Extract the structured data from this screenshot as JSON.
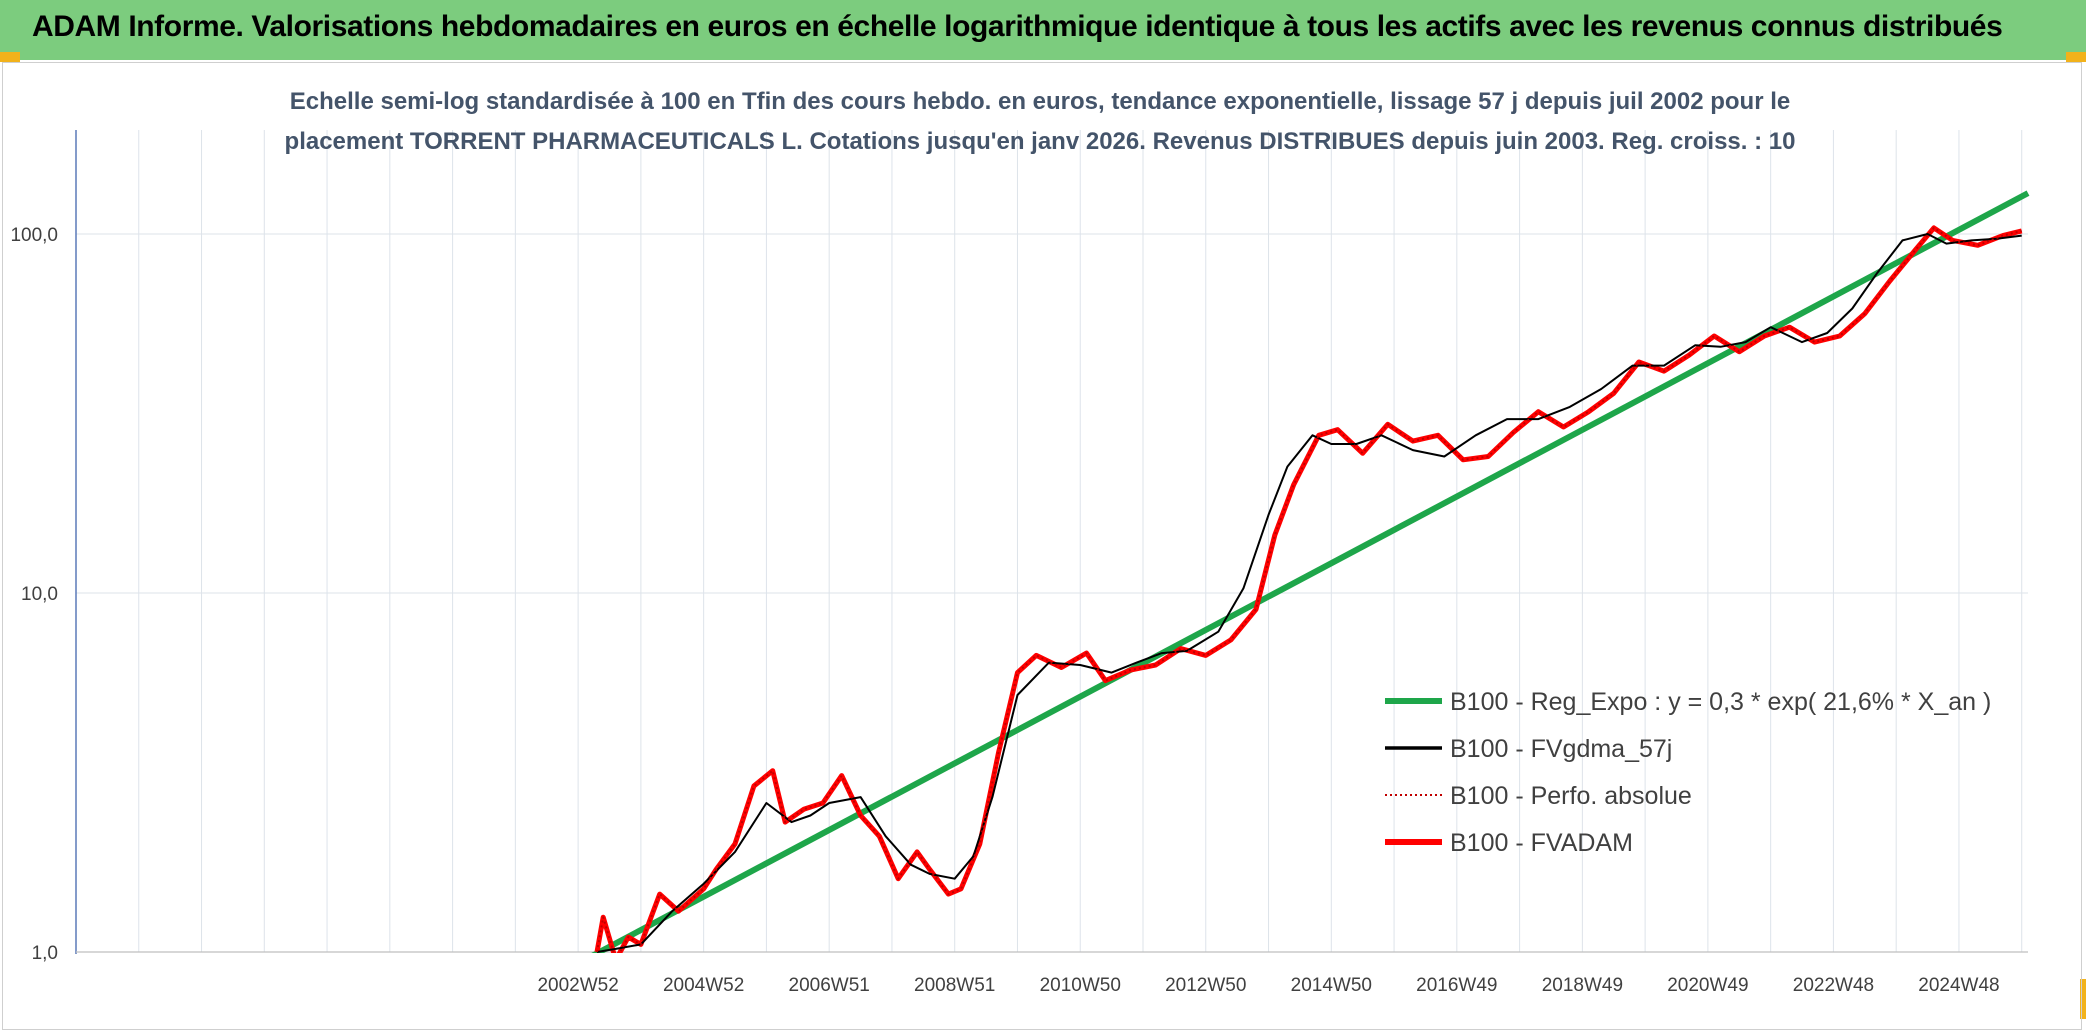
{
  "banner": {
    "title": "ADAM Informe. Valorisations hebdomadaires en euros en échelle logarithmique identique à tous les actifs avec les revenus connus distribués",
    "background": "#7ccc7e"
  },
  "chart_data": {
    "type": "line",
    "title_lines": [
      "Echelle semi-log standardisée à 100 en Tfin des cours hebdo. en euros, tendance exponentielle, lissage 57 j depuis juil 2002 pour le",
      "placement TORRENT PHARMACEUTICALS L. Cotations jusqu'en janv 2026. Revenus DISTRIBUES depuis juin 2003. Reg. croiss. : 10"
    ],
    "xlabel": "",
    "ylabel": "",
    "y_scale": "log",
    "ylim": [
      1,
      200
    ],
    "y_ticks": [
      {
        "value": 1,
        "label": "1,0"
      },
      {
        "value": 10,
        "label": "10,0"
      },
      {
        "value": 100,
        "label": "100,0"
      }
    ],
    "xlim": [
      1995.0,
      2026.1
    ],
    "x_ticks": [
      {
        "value": 2003.0,
        "label": "2002W52"
      },
      {
        "value": 2005.0,
        "label": "2004W52"
      },
      {
        "value": 2007.0,
        "label": "2006W51"
      },
      {
        "value": 2009.0,
        "label": "2008W51"
      },
      {
        "value": 2011.0,
        "label": "2010W50"
      },
      {
        "value": 2013.0,
        "label": "2012W50"
      },
      {
        "value": 2015.0,
        "label": "2014W50"
      },
      {
        "value": 2017.0,
        "label": "2016W49"
      },
      {
        "value": 2019.0,
        "label": "2018W49"
      },
      {
        "value": 2021.0,
        "label": "2020W49"
      },
      {
        "value": 2023.0,
        "label": "2022W48"
      },
      {
        "value": 2025.0,
        "label": "2024W48"
      }
    ],
    "grid": "vertical and horizontal",
    "legend_position": "lower-right",
    "series": [
      {
        "name": "B100 - Reg_Expo : y = 0,3 * exp( 21,6% *  X_an )",
        "color": "#1ea64a",
        "style": "solid-thick",
        "x": [
          2003.2,
          2026.1
        ],
        "y": [
          0.97,
          130
        ]
      },
      {
        "name": "B100 - FVgdma_57j",
        "color": "#000000",
        "style": "solid-thin",
        "x": [
          2003.3,
          2003.6,
          2004.0,
          2004.5,
          2005.0,
          2005.5,
          2006.0,
          2006.4,
          2006.7,
          2007.0,
          2007.5,
          2007.9,
          2008.3,
          2008.6,
          2009.0,
          2009.3,
          2009.6,
          2010.0,
          2010.5,
          2011.0,
          2011.5,
          2011.9,
          2012.3,
          2012.7,
          2013.2,
          2013.6,
          2014.0,
          2014.3,
          2014.7,
          2015.0,
          2015.4,
          2015.8,
          2016.3,
          2016.8,
          2017.3,
          2017.8,
          2018.3,
          2018.8,
          2019.3,
          2019.8,
          2020.3,
          2020.8,
          2021.2,
          2021.6,
          2022.0,
          2022.5,
          2022.9,
          2023.3,
          2023.7,
          2024.1,
          2024.5,
          2024.8,
          2025.2,
          2025.6,
          2026.0
        ],
        "y": [
          1.0,
          1.02,
          1.05,
          1.3,
          1.55,
          1.9,
          2.6,
          2.3,
          2.4,
          2.6,
          2.7,
          2.1,
          1.75,
          1.65,
          1.6,
          1.85,
          2.7,
          5.2,
          6.4,
          6.3,
          6.0,
          6.4,
          6.8,
          6.9,
          7.8,
          10.3,
          16.5,
          22.5,
          27.5,
          26.0,
          26.0,
          27.5,
          25.0,
          24.0,
          27.5,
          30.5,
          30.5,
          33.0,
          37.0,
          43.0,
          43.0,
          49.0,
          48.5,
          50.0,
          55.0,
          50.0,
          53.0,
          62.0,
          78.0,
          96.0,
          100.0,
          94.0,
          96.0,
          97.0,
          99.0
        ]
      },
      {
        "name": "B100 - Perfo. absolue",
        "color": "#c00000",
        "style": "dotted",
        "x": [
          2003.3,
          2003.4,
          2003.6,
          2003.8,
          2004.0,
          2004.3,
          2004.6,
          2005.0,
          2005.2,
          2005.5,
          2005.8,
          2006.1,
          2006.3,
          2006.6,
          2006.9,
          2007.2,
          2007.5,
          2007.8,
          2008.1,
          2008.4,
          2008.6,
          2008.9,
          2009.1,
          2009.4,
          2009.7,
          2010.0,
          2010.3,
          2010.7,
          2011.1,
          2011.4,
          2011.8,
          2012.2,
          2012.6,
          2013.0,
          2013.4,
          2013.8,
          2014.1,
          2014.4,
          2014.8,
          2015.1,
          2015.5,
          2015.9,
          2016.3,
          2016.7,
          2017.1,
          2017.5,
          2017.9,
          2018.3,
          2018.7,
          2019.1,
          2019.5,
          2019.9,
          2020.3,
          2020.7,
          2021.1,
          2021.5,
          2021.9,
          2022.3,
          2022.7,
          2023.1,
          2023.5,
          2023.9,
          2024.3,
          2024.6,
          2024.9,
          2025.3,
          2025.7,
          2026.0
        ],
        "y": [
          1.0,
          1.25,
          0.95,
          1.1,
          1.05,
          1.45,
          1.3,
          1.5,
          1.7,
          2.0,
          2.9,
          3.2,
          2.3,
          2.5,
          2.6,
          3.1,
          2.4,
          2.1,
          1.6,
          1.9,
          1.7,
          1.45,
          1.5,
          2.0,
          3.6,
          6.0,
          6.7,
          6.2,
          6.8,
          5.7,
          6.1,
          6.3,
          7.0,
          6.7,
          7.4,
          9.0,
          14.5,
          20.0,
          27.5,
          28.5,
          24.5,
          29.5,
          26.5,
          27.5,
          23.5,
          24.0,
          28.0,
          32.0,
          29.0,
          32.0,
          36.0,
          44.0,
          41.5,
          46.0,
          52.0,
          47.0,
          52.0,
          55.0,
          50.0,
          52.0,
          60.0,
          74.0,
          90.0,
          104.0,
          96.0,
          93.0,
          99.0,
          102.0
        ]
      },
      {
        "name": "B100 - FVADAM",
        "color": "#ff0000",
        "style": "solid-thick",
        "x": [
          2003.3,
          2003.4,
          2003.6,
          2003.8,
          2004.0,
          2004.3,
          2004.6,
          2005.0,
          2005.2,
          2005.5,
          2005.8,
          2006.1,
          2006.3,
          2006.6,
          2006.9,
          2007.2,
          2007.5,
          2007.8,
          2008.1,
          2008.4,
          2008.6,
          2008.9,
          2009.1,
          2009.4,
          2009.7,
          2010.0,
          2010.3,
          2010.7,
          2011.1,
          2011.4,
          2011.8,
          2012.2,
          2012.6,
          2013.0,
          2013.4,
          2013.8,
          2014.1,
          2014.4,
          2014.8,
          2015.1,
          2015.5,
          2015.9,
          2016.3,
          2016.7,
          2017.1,
          2017.5,
          2017.9,
          2018.3,
          2018.7,
          2019.1,
          2019.5,
          2019.9,
          2020.3,
          2020.7,
          2021.1,
          2021.5,
          2021.9,
          2022.3,
          2022.7,
          2023.1,
          2023.5,
          2023.9,
          2024.3,
          2024.6,
          2024.9,
          2025.3,
          2025.7,
          2026.0
        ],
        "y": [
          1.0,
          1.25,
          0.95,
          1.1,
          1.05,
          1.45,
          1.3,
          1.5,
          1.7,
          2.0,
          2.9,
          3.2,
          2.3,
          2.5,
          2.6,
          3.1,
          2.4,
          2.1,
          1.6,
          1.9,
          1.7,
          1.45,
          1.5,
          2.0,
          3.6,
          6.0,
          6.7,
          6.2,
          6.8,
          5.7,
          6.1,
          6.3,
          7.0,
          6.7,
          7.4,
          9.0,
          14.5,
          20.0,
          27.5,
          28.5,
          24.5,
          29.5,
          26.5,
          27.5,
          23.5,
          24.0,
          28.0,
          32.0,
          29.0,
          32.0,
          36.0,
          44.0,
          41.5,
          46.0,
          52.0,
          47.0,
          52.0,
          55.0,
          50.0,
          52.0,
          60.0,
          74.0,
          90.0,
          104.0,
          96.0,
          93.0,
          99.0,
          102.0
        ]
      }
    ]
  }
}
